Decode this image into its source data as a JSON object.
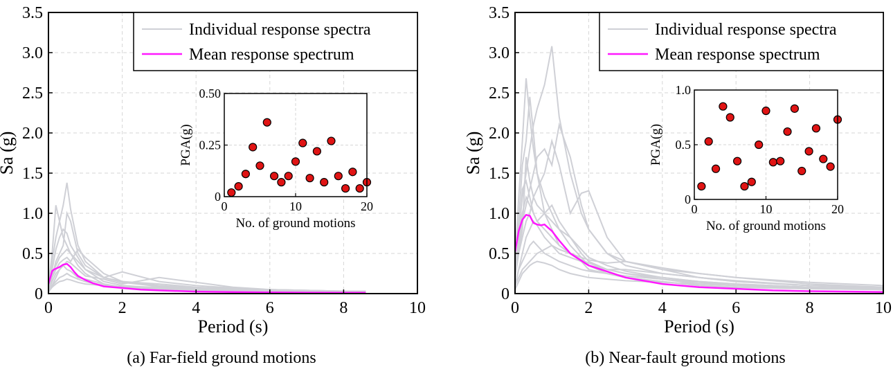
{
  "colors": {
    "individual": "#cfd0d6",
    "mean": "#ff19ff",
    "marker_fill": "#e01414",
    "grid": "#d6d6d6"
  },
  "chart_data": [
    {
      "type": "line",
      "panel": "a",
      "caption": "(a) Far-field ground motions",
      "xlabel": "Period (s)",
      "ylabel": "Sa (g)",
      "xlim": [
        0,
        10
      ],
      "ylim": [
        0,
        3.5
      ],
      "xticks": [
        "0",
        "2",
        "4",
        "6",
        "8",
        "10"
      ],
      "yticks": [
        "0",
        "0.5",
        "1.0",
        "1.5",
        "2.0",
        "2.5",
        "3.0",
        "3.5"
      ],
      "grid": true,
      "legend": {
        "position": "top-right",
        "entries": [
          "Individual response spectra",
          "Mean response spectrum"
        ]
      },
      "series": [
        {
          "name": "Mean response spectrum",
          "x": [
            0,
            0.05,
            0.1,
            0.15,
            0.2,
            0.3,
            0.4,
            0.5,
            0.6,
            0.7,
            0.8,
            1.0,
            1.2,
            1.5,
            2.0,
            2.5,
            3.0,
            4.0,
            5.0,
            6.0,
            7.0,
            8.0,
            8.6
          ],
          "y": [
            0.12,
            0.2,
            0.28,
            0.3,
            0.31,
            0.33,
            0.36,
            0.37,
            0.33,
            0.27,
            0.22,
            0.17,
            0.13,
            0.09,
            0.07,
            0.05,
            0.04,
            0.025,
            0.02,
            0.015,
            0.012,
            0.01,
            0.01
          ]
        },
        {
          "name": "Individual response spectra",
          "role": "individual",
          "x": [
            0,
            0.1,
            0.2,
            0.3,
            0.4,
            0.5,
            0.6,
            0.8,
            1.0,
            1.5,
            2.0,
            3.0,
            4.0,
            5.0,
            6.0,
            7.0,
            8.0,
            8.6
          ],
          "curves": [
            [
              0.1,
              0.4,
              0.7,
              0.9,
              1.1,
              1.38,
              1.05,
              0.6,
              0.4,
              0.2,
              0.14,
              0.09,
              0.06,
              0.05,
              0.04,
              0.03,
              0.02,
              0.02
            ],
            [
              0.1,
              0.5,
              1.1,
              0.9,
              0.7,
              0.6,
              0.5,
              0.35,
              0.25,
              0.12,
              0.08,
              0.05,
              0.03,
              0.02,
              0.02,
              0.01,
              0.01,
              0.01
            ],
            [
              0.05,
              0.3,
              0.55,
              0.7,
              0.8,
              0.75,
              0.6,
              0.45,
              0.3,
              0.15,
              0.1,
              0.07,
              0.05,
              0.04,
              0.03,
              0.02,
              0.02,
              0.02
            ],
            [
              0.05,
              0.2,
              0.4,
              0.5,
              0.6,
              1.0,
              0.9,
              0.5,
              0.35,
              0.2,
              0.15,
              0.12,
              0.08,
              0.06,
              0.05,
              0.04,
              0.03,
              0.03
            ],
            [
              0.05,
              0.25,
              0.35,
              0.45,
              0.5,
              0.55,
              0.5,
              0.4,
              0.3,
              0.2,
              0.27,
              0.15,
              0.1,
              0.07,
              0.05,
              0.04,
              0.03,
              0.03
            ],
            [
              0.03,
              0.15,
              0.25,
              0.3,
              0.35,
              0.4,
              0.38,
              0.3,
              0.22,
              0.18,
              0.12,
              0.2,
              0.14,
              0.08,
              0.05,
              0.04,
              0.03,
              0.03
            ],
            [
              0.04,
              0.2,
              0.3,
              0.38,
              0.42,
              0.45,
              0.4,
              0.55,
              0.45,
              0.25,
              0.15,
              0.1,
              0.07,
              0.05,
              0.04,
              0.03,
              0.03,
              0.02
            ],
            [
              0.02,
              0.1,
              0.15,
              0.2,
              0.22,
              0.25,
              0.22,
              0.18,
              0.15,
              0.1,
              0.08,
              0.06,
              0.05,
              0.04,
              0.03,
              0.03,
              0.02,
              0.02
            ],
            [
              0.03,
              0.1,
              0.2,
              0.3,
              0.35,
              0.3,
              0.28,
              0.2,
              0.18,
              0.12,
              0.08,
              0.05,
              0.04,
              0.03,
              0.02,
              0.02,
              0.02,
              0.01
            ],
            [
              0.02,
              0.08,
              0.12,
              0.15,
              0.16,
              0.18,
              0.17,
              0.14,
              0.12,
              0.1,
              0.09,
              0.08,
              0.06,
              0.05,
              0.04,
              0.03,
              0.03,
              0.02
            ]
          ]
        }
      ],
      "inset": {
        "type": "scatter",
        "xlabel": "No. of ground motions",
        "ylabel": "PGA(g)",
        "xlim": [
          0,
          20
        ],
        "ylim": [
          0,
          0.5
        ],
        "xticks": [
          "0",
          "10",
          "20"
        ],
        "yticks": [
          "0.50",
          "0.25",
          "0"
        ],
        "x": [
          1,
          2,
          3,
          4,
          5,
          6,
          7,
          8,
          9,
          10,
          11,
          12,
          13,
          14,
          15,
          16,
          17,
          18,
          19,
          20
        ],
        "y": [
          0.02,
          0.05,
          0.11,
          0.24,
          0.15,
          0.36,
          0.1,
          0.07,
          0.1,
          0.17,
          0.26,
          0.09,
          0.22,
          0.07,
          0.27,
          0.1,
          0.04,
          0.12,
          0.04,
          0.07
        ]
      }
    },
    {
      "type": "line",
      "panel": "b",
      "caption": "(b) Near-fault ground motions",
      "xlabel": "Period (s)",
      "ylabel": "Sa (g)",
      "xlim": [
        0,
        10
      ],
      "ylim": [
        0,
        3.5
      ],
      "xticks": [
        "0",
        "2",
        "4",
        "6",
        "8",
        "10"
      ],
      "yticks": [
        "0",
        "0.5",
        "1.0",
        "1.5",
        "2.0",
        "2.5",
        "3.0",
        "3.5"
      ],
      "grid": true,
      "legend": {
        "position": "top-right",
        "entries": [
          "Individual response spectra",
          "Mean response spectrum"
        ]
      },
      "series": [
        {
          "name": "Mean response spectrum",
          "x": [
            0,
            0.05,
            0.1,
            0.2,
            0.3,
            0.4,
            0.5,
            0.6,
            0.7,
            0.8,
            0.9,
            1.0,
            1.2,
            1.5,
            2.0,
            3.0,
            4.0,
            5.0,
            6.0,
            7.0,
            8.0,
            10.0
          ],
          "y": [
            0.52,
            0.65,
            0.78,
            0.92,
            0.98,
            0.97,
            0.88,
            0.86,
            0.85,
            0.86,
            0.82,
            0.78,
            0.66,
            0.5,
            0.35,
            0.2,
            0.12,
            0.08,
            0.06,
            0.04,
            0.03,
            0.02
          ]
        },
        {
          "name": "Individual response spectra",
          "role": "individual",
          "x": [
            0,
            0.1,
            0.2,
            0.3,
            0.4,
            0.5,
            0.6,
            0.8,
            1.0,
            1.2,
            1.5,
            1.8,
            2.0,
            2.5,
            3.0,
            4.0,
            5.0,
            6.0,
            8.0,
            10.0
          ],
          "curves": [
            [
              0.3,
              0.8,
              1.2,
              1.5,
              1.8,
              2.1,
              2.3,
              2.6,
              3.08,
              2.2,
              1.5,
              1.0,
              0.8,
              0.5,
              0.4,
              0.3,
              0.25,
              0.2,
              0.14,
              0.1
            ],
            [
              0.4,
              1.2,
              1.9,
              2.68,
              2.2,
              1.8,
              1.5,
              1.2,
              1.0,
              0.8,
              0.6,
              0.45,
              0.35,
              0.25,
              0.2,
              0.15,
              0.1,
              0.08,
              0.06,
              0.05
            ],
            [
              0.2,
              0.6,
              0.9,
              1.1,
              1.3,
              1.5,
              1.7,
              1.8,
              1.6,
              2.1,
              1.7,
              1.1,
              0.8,
              0.5,
              0.35,
              0.25,
              0.2,
              0.15,
              0.1,
              0.08
            ],
            [
              0.3,
              0.9,
              1.6,
              1.9,
              2.45,
              2.0,
              1.5,
              1.0,
              0.8,
              0.6,
              0.5,
              0.4,
              0.3,
              0.25,
              0.2,
              0.15,
              0.1,
              0.08,
              0.06,
              0.05
            ],
            [
              0.2,
              0.5,
              0.7,
              0.9,
              1.0,
              1.2,
              1.3,
              1.5,
              1.9,
              1.6,
              1.0,
              1.25,
              1.28,
              0.7,
              0.4,
              0.3,
              0.2,
              0.15,
              0.1,
              0.08
            ],
            [
              0.3,
              0.7,
              1.0,
              1.2,
              1.1,
              1.0,
              0.9,
              0.8,
              0.7,
              0.6,
              0.5,
              0.45,
              0.42,
              0.38,
              0.4,
              0.32,
              0.25,
              0.2,
              0.12,
              0.08
            ],
            [
              0.2,
              0.5,
              0.8,
              1.7,
              1.4,
              1.2,
              1.1,
              1.0,
              0.9,
              0.8,
              0.7,
              0.55,
              0.45,
              0.35,
              0.28,
              0.2,
              0.15,
              0.12,
              0.08,
              0.06
            ],
            [
              0.1,
              0.3,
              0.5,
              0.7,
              0.8,
              0.9,
              0.85,
              0.7,
              0.6,
              0.5,
              0.45,
              0.4,
              0.35,
              0.3,
              0.25,
              0.18,
              0.12,
              0.1,
              0.07,
              0.05
            ],
            [
              0.1,
              0.3,
              0.4,
              0.5,
              0.6,
              0.65,
              0.6,
              0.5,
              0.45,
              0.4,
              0.35,
              0.3,
              0.28,
              0.25,
              0.22,
              0.18,
              0.14,
              0.1,
              0.07,
              0.05
            ],
            [
              0.2,
              0.6,
              1.3,
              1.4,
              1.2,
              1.0,
              0.9,
              1.0,
              1.1,
              0.9,
              0.7,
              0.5,
              0.4,
              0.3,
              0.25,
              0.2,
              0.15,
              0.12,
              0.08,
              0.06
            ],
            [
              0.1,
              0.2,
              0.3,
              0.35,
              0.4,
              0.45,
              0.5,
              0.55,
              0.6,
              0.55,
              0.5,
              0.42,
              0.38,
              0.3,
              0.3,
              0.25,
              0.2,
              0.16,
              0.1,
              0.07
            ],
            [
              0.05,
              0.15,
              0.25,
              0.3,
              0.35,
              0.38,
              0.4,
              0.38,
              0.35,
              0.3,
              0.25,
              0.22,
              0.2,
              0.18,
              0.16,
              0.14,
              0.12,
              0.1,
              0.08,
              0.06
            ]
          ]
        }
      ],
      "inset": {
        "type": "scatter",
        "xlabel": "No. of ground motions",
        "ylabel": "PGA(g)",
        "xlim": [
          0,
          20
        ],
        "ylim": [
          0,
          1.0
        ],
        "xticks": [
          "0",
          "10",
          "20"
        ],
        "yticks": [
          "1.0",
          "0.5",
          "0"
        ],
        "x": [
          1,
          2,
          3,
          4,
          5,
          6,
          7,
          8,
          9,
          10,
          11,
          12,
          13,
          14,
          15,
          16,
          17,
          18,
          19,
          20
        ],
        "y": [
          0.12,
          0.53,
          0.28,
          0.85,
          0.75,
          0.35,
          0.12,
          0.16,
          0.5,
          0.81,
          0.34,
          0.35,
          0.62,
          0.83,
          0.26,
          0.44,
          0.65,
          0.37,
          0.3,
          0.73
        ]
      }
    }
  ]
}
